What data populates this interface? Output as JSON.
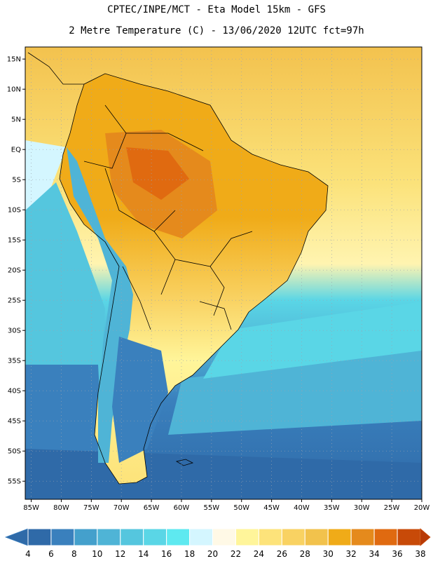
{
  "header": {
    "line1": "CPTEC/INPE/MCT -  Eta Model 15km - GFS",
    "line2": "2 Metre Temperature (C) - 13/06/2020 12UTC fct=97h"
  },
  "map": {
    "lon_range": [
      -86,
      -20
    ],
    "lat_range": [
      -58,
      17
    ],
    "lat_ticks": [
      "15N",
      "10N",
      "5N",
      "EQ",
      "5S",
      "10S",
      "15S",
      "20S",
      "25S",
      "30S",
      "35S",
      "40S",
      "45S",
      "50S",
      "55S"
    ],
    "lon_ticks": [
      "85W",
      "80W",
      "75W",
      "70W",
      "65W",
      "60W",
      "55W",
      "50W",
      "45W",
      "40W",
      "35W",
      "30W",
      "25W",
      "20W"
    ]
  },
  "colorbar": {
    "labels": [
      "4",
      "6",
      "8",
      "10",
      "12",
      "14",
      "16",
      "18",
      "20",
      "22",
      "24",
      "26",
      "28",
      "30",
      "32",
      "34",
      "36",
      "38"
    ],
    "colors": [
      "#2f6aa8",
      "#3a80bd",
      "#44a0cc",
      "#4fb4d6",
      "#55c6de",
      "#5ad6e6",
      "#5ee9f0",
      "#d4f6ff",
      "#fff9e6",
      "#fff59a",
      "#fde37a",
      "#f9d262",
      "#f2c24c",
      "#f0ab18",
      "#e58a1c",
      "#e06a10",
      "#c84a08"
    ]
  }
}
